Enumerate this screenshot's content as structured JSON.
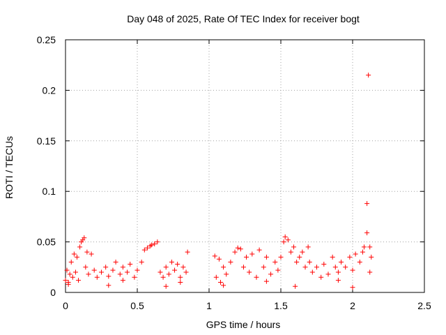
{
  "chart_data": {
    "type": "scatter",
    "title": "Day 048 of 2025, Rate Of TEC Index for receiver bogt",
    "xlabel": "GPS time / hours",
    "ylabel": "ROTI / TECUs",
    "xlim": [
      0,
      2.5
    ],
    "ylim": [
      0,
      0.25
    ],
    "x_ticks": [
      "0",
      "0.5",
      "1",
      "1.5",
      "2",
      "2.5"
    ],
    "y_ticks": [
      "0",
      "0.05",
      "0.1",
      "0.15",
      "0.2",
      "0.25"
    ],
    "grid": true,
    "marker": "+",
    "colors": {
      "points": "#ff0000",
      "grid": "#a0a0a0",
      "frame": "#000000"
    },
    "series": [
      {
        "points": [
          [
            0.0,
            0.012
          ],
          [
            0.01,
            0.022
          ],
          [
            0.02,
            0.01
          ],
          [
            0.03,
            0.018
          ],
          [
            0.04,
            0.03
          ],
          [
            0.05,
            0.015
          ],
          [
            0.06,
            0.038
          ],
          [
            0.07,
            0.02
          ],
          [
            0.08,
            0.035
          ],
          [
            0.09,
            0.012
          ],
          [
            0.1,
            0.045
          ],
          [
            0.11,
            0.05
          ],
          [
            0.12,
            0.052
          ],
          [
            0.13,
            0.054
          ],
          [
            0.14,
            0.025
          ],
          [
            0.15,
            0.04
          ],
          [
            0.16,
            0.018
          ],
          [
            0.18,
            0.038
          ],
          [
            0.2,
            0.022
          ],
          [
            0.22,
            0.015
          ],
          [
            0.25,
            0.02
          ],
          [
            0.28,
            0.025
          ],
          [
            0.3,
            0.016
          ],
          [
            0.33,
            0.022
          ],
          [
            0.35,
            0.03
          ],
          [
            0.38,
            0.018
          ],
          [
            0.4,
            0.025
          ],
          [
            0.43,
            0.02
          ],
          [
            0.45,
            0.028
          ],
          [
            0.48,
            0.015
          ],
          [
            0.5,
            0.022
          ],
          [
            0.53,
            0.03
          ],
          [
            0.55,
            0.042
          ],
          [
            0.57,
            0.044
          ],
          [
            0.59,
            0.046
          ],
          [
            0.6,
            0.047
          ],
          [
            0.62,
            0.048
          ],
          [
            0.64,
            0.05
          ],
          [
            0.66,
            0.02
          ],
          [
            0.68,
            0.015
          ],
          [
            0.7,
            0.025
          ],
          [
            0.72,
            0.018
          ],
          [
            0.74,
            0.03
          ],
          [
            0.76,
            0.022
          ],
          [
            0.78,
            0.028
          ],
          [
            0.8,
            0.015
          ],
          [
            0.82,
            0.025
          ],
          [
            0.84,
            0.02
          ],
          [
            0.85,
            0.04
          ],
          [
            1.04,
            0.036
          ],
          [
            1.05,
            0.015
          ],
          [
            1.07,
            0.033
          ],
          [
            1.08,
            0.01
          ],
          [
            1.1,
            0.025
          ],
          [
            1.12,
            0.018
          ],
          [
            1.15,
            0.03
          ],
          [
            1.18,
            0.04
          ],
          [
            1.2,
            0.044
          ],
          [
            1.22,
            0.043
          ],
          [
            1.24,
            0.025
          ],
          [
            1.26,
            0.035
          ],
          [
            1.28,
            0.02
          ],
          [
            1.3,
            0.038
          ],
          [
            1.33,
            0.015
          ],
          [
            1.35,
            0.042
          ],
          [
            1.38,
            0.025
          ],
          [
            1.4,
            0.035
          ],
          [
            1.43,
            0.018
          ],
          [
            1.46,
            0.03
          ],
          [
            1.48,
            0.022
          ],
          [
            1.5,
            0.035
          ],
          [
            1.52,
            0.05
          ],
          [
            1.53,
            0.055
          ],
          [
            1.55,
            0.052
          ],
          [
            1.57,
            0.04
          ],
          [
            1.59,
            0.045
          ],
          [
            1.61,
            0.03
          ],
          [
            1.63,
            0.035
          ],
          [
            1.65,
            0.04
          ],
          [
            1.67,
            0.025
          ],
          [
            1.69,
            0.045
          ],
          [
            1.7,
            0.03
          ],
          [
            1.72,
            0.02
          ],
          [
            1.75,
            0.025
          ],
          [
            1.78,
            0.015
          ],
          [
            1.8,
            0.028
          ],
          [
            1.83,
            0.018
          ],
          [
            1.86,
            0.035
          ],
          [
            1.88,
            0.025
          ],
          [
            1.9,
            0.02
          ],
          [
            1.92,
            0.03
          ],
          [
            1.95,
            0.025
          ],
          [
            1.98,
            0.035
          ],
          [
            2.0,
            0.022
          ],
          [
            2.02,
            0.038
          ],
          [
            2.05,
            0.03
          ],
          [
            2.07,
            0.04
          ],
          [
            2.08,
            0.045
          ],
          [
            2.1,
            0.059
          ],
          [
            2.1,
            0.088
          ],
          [
            2.11,
            0.215
          ],
          [
            2.12,
            0.045
          ],
          [
            2.13,
            0.035
          ],
          [
            0.02,
            0.008
          ],
          [
            0.3,
            0.007
          ],
          [
            0.7,
            0.006
          ],
          [
            1.1,
            0.007
          ],
          [
            1.6,
            0.006
          ],
          [
            2.0,
            0.005
          ],
          [
            0.4,
            0.012
          ],
          [
            0.8,
            0.01
          ],
          [
            1.4,
            0.011
          ],
          [
            1.9,
            0.012
          ],
          [
            2.12,
            0.02
          ]
        ]
      }
    ]
  }
}
